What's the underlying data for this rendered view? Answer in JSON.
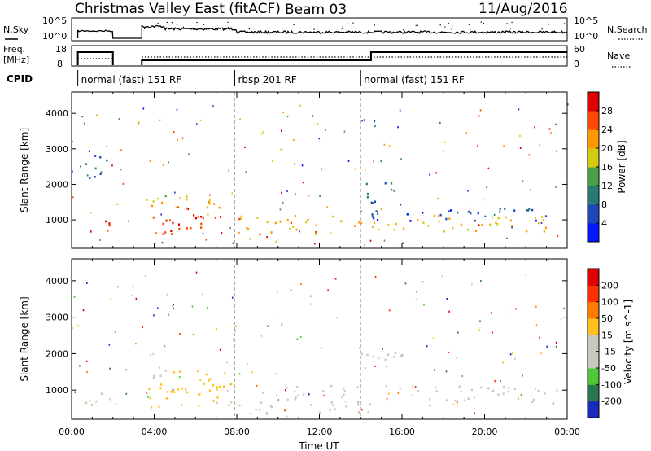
{
  "header": {
    "station": "Christmas Valley East (fitACF)",
    "beam": "Beam 03",
    "date": "11/Aug/2016"
  },
  "top_panel": {
    "left_label": "N.Sky",
    "left_ticks": [
      "10^5",
      "10^0"
    ],
    "right_label": "N.Search",
    "right_ticks": [
      "10^5",
      "10^0"
    ]
  },
  "freq_panel": {
    "left_label_line1": "Freq.",
    "left_label_line2": "[MHz]",
    "left_ticks": [
      "18",
      "8"
    ],
    "right_label": "Nave",
    "right_ticks": [
      "60",
      "0"
    ]
  },
  "cpid": {
    "label": "CPID",
    "segments": [
      {
        "name": "normal (fast) 151 RF",
        "start_hour": 0.3
      },
      {
        "name": "rbsp 201 RF",
        "start_hour": 7.9
      },
      {
        "name": "normal (fast) 151 RF",
        "start_hour": 14.0
      }
    ]
  },
  "chart_data": [
    {
      "type": "heatmap",
      "quantity": "power",
      "ylabel": "Slant Range [km]",
      "xlabel": "Time UT",
      "xlim": [
        0,
        24
      ],
      "ylim": [
        200,
        4600
      ],
      "yticks": [
        "1000",
        "2000",
        "3000",
        "4000"
      ],
      "xticks": [
        "00:00",
        "04:00",
        "08:00",
        "12:00",
        "16:00",
        "20:00",
        "00:00"
      ],
      "colorbar": {
        "label": "Power [dB]",
        "ticks": [
          "4",
          "8",
          "12",
          "16",
          "20",
          "24",
          "28"
        ],
        "colors": [
          "#0018ff",
          "#1e48b8",
          "#2a7a74",
          "#4aa04a",
          "#d4cc10",
          "#ff9800",
          "#ff4800",
          "#e00000"
        ],
        "range": [
          0,
          32
        ]
      },
      "features": [
        {
          "t0": 0.4,
          "t1": 2.0,
          "r0": 600,
          "r1": 1000,
          "value": 27
        },
        {
          "t0": 3.5,
          "t1": 7.8,
          "r0": 550,
          "r1": 1200,
          "value": 28
        },
        {
          "t0": 3.5,
          "t1": 7.0,
          "r0": 1300,
          "r1": 1700,
          "value": 18
        },
        {
          "t0": 5.0,
          "t1": 7.5,
          "r0": 1100,
          "r1": 1500,
          "value": 22
        },
        {
          "t0": 8.0,
          "t1": 14.0,
          "r0": 600,
          "r1": 1150,
          "value": 21
        },
        {
          "t0": 14.5,
          "t1": 23.5,
          "r0": 700,
          "r1": 1150,
          "value": 20
        },
        {
          "t0": 0.6,
          "t1": 1.8,
          "r0": 2200,
          "r1": 3100,
          "value": 9
        },
        {
          "t0": 14.0,
          "t1": 16.0,
          "r0": 1400,
          "r1": 2100,
          "value": 9
        },
        {
          "t0": 14.5,
          "t1": 23.8,
          "r0": 1000,
          "r1": 1350,
          "value": 7
        }
      ]
    },
    {
      "type": "heatmap",
      "quantity": "velocity",
      "ylabel": "Slant Range [km]",
      "xlabel": "Time UT",
      "xlim": [
        0,
        24
      ],
      "ylim": [
        200,
        4600
      ],
      "yticks": [
        "1000",
        "2000",
        "3000",
        "4000"
      ],
      "xticks": [
        "00:00",
        "04:00",
        "08:00",
        "12:00",
        "16:00",
        "20:00",
        "00:00"
      ],
      "colorbar": {
        "label": "Velocity [m s^-1]",
        "ticks": [
          "200",
          "100",
          "50",
          "15",
          "-15",
          "-50",
          "-100",
          "-200"
        ],
        "colors": [
          "#1a2ac0",
          "#2a7850",
          "#4fc838",
          "#c8c8c0",
          "#c8c8c0",
          "#ffc020",
          "#ff7a00",
          "#ff3000",
          "#e00000"
        ],
        "range": [
          -250,
          250
        ]
      },
      "features": [
        {
          "t0": 0.4,
          "t1": 2.0,
          "r0": 600,
          "r1": 1000,
          "value": 0
        },
        {
          "t0": 3.5,
          "t1": 7.8,
          "r0": 550,
          "r1": 1200,
          "value": 40
        },
        {
          "t0": 4.5,
          "t1": 7.5,
          "r0": 900,
          "r1": 1600,
          "value": 60
        },
        {
          "t0": 3.5,
          "t1": 5.0,
          "r0": 1300,
          "r1": 1700,
          "value": -30
        },
        {
          "t0": 8.0,
          "t1": 14.5,
          "r0": 300,
          "r1": 700,
          "value": -60
        },
        {
          "t0": 9.0,
          "t1": 14.0,
          "r0": 750,
          "r1": 1150,
          "value": 0
        },
        {
          "t0": 14.5,
          "t1": 23.5,
          "r0": 700,
          "r1": 1150,
          "value": 0
        },
        {
          "t0": 14.0,
          "t1": 16.0,
          "r0": 1400,
          "r1": 2100,
          "value": 0
        }
      ]
    }
  ]
}
